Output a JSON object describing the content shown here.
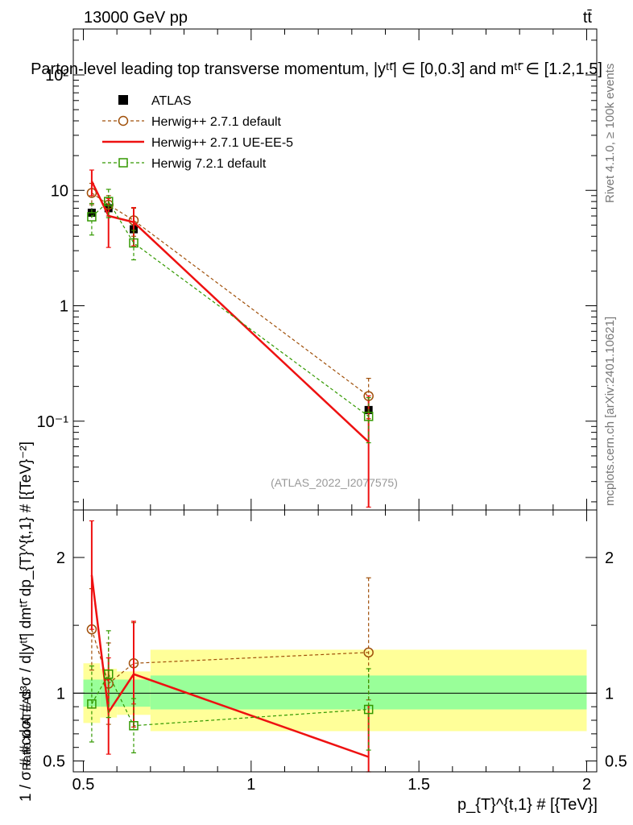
{
  "header": {
    "energy_label": "13000 GeV pp",
    "process_label": "tt̄",
    "title": "Parton-level leading top transverse momentum, |yᵗᵗ̄| ∈ [0,0.3] and mᵗᵗ̄ ∈ [1.2,1.5]",
    "side_rivet": "Rivet 4.1.0, ≥ 100k events",
    "side_mcplots": "mcplots.cern.ch [arXiv:2401.10621]",
    "watermark": "(ATLAS_2022_I2077575)"
  },
  "colors": {
    "atlas": "#000000",
    "herwig271_default": "#a0500a",
    "herwig271_ueee5": "#ee1111",
    "herwig721_default": "#339900",
    "band_inner": "#99ff99",
    "band_outer": "#ffff99"
  },
  "chart_data": [
    {
      "type": "scatter",
      "panel": "main",
      "ylabel": "1 / σ # #cdot # d³σ / d|yᵗᵗ̄| dmᵗᵗ̄ dp_{T}^{t,1} # [{TeV}⁻²]",
      "yscale": "log",
      "xlim": [
        0.47,
        2.03
      ],
      "ylim": [
        0.017,
        250
      ],
      "y_ticks": [
        {
          "value": 0.1,
          "label": "10⁻¹"
        },
        {
          "value": 1,
          "label": "1"
        },
        {
          "value": 10,
          "label": "10"
        },
        {
          "value": 100,
          "label": "10²"
        }
      ],
      "legend_position": "top-left",
      "series": [
        {
          "name": "ATLAS",
          "style": "data",
          "x": [
            0.525,
            0.575,
            0.65,
            1.35
          ],
          "y": [
            6.4,
            7.0,
            4.6,
            0.125
          ],
          "yerr_lo": [
            0.6,
            0.6,
            0.6,
            0.02
          ],
          "yerr_hi": [
            0.6,
            0.6,
            0.6,
            0.02
          ]
        },
        {
          "name": "Herwig++ 2.7.1 default",
          "style": "circle-dashed",
          "x": [
            0.525,
            0.575,
            0.65,
            1.35
          ],
          "y": [
            9.5,
            7.5,
            5.5,
            0.165
          ],
          "yerr_lo": [
            2.0,
            1.5,
            1.5,
            0.06
          ],
          "yerr_hi": [
            2.0,
            1.5,
            1.5,
            0.07
          ]
        },
        {
          "name": "Herwig++ 2.7.1 UE-EE-5",
          "style": "solid",
          "x": [
            0.525,
            0.575,
            0.65,
            1.35
          ],
          "y": [
            12.0,
            6.0,
            5.3,
            0.066
          ],
          "yerr_lo": [
            3.0,
            2.8,
            2.0,
            0.048
          ],
          "yerr_hi": [
            3.0,
            2.5,
            1.8,
            0.1
          ]
        },
        {
          "name": "Herwig 7.2.1 default",
          "style": "square-dashed",
          "x": [
            0.525,
            0.575,
            0.65,
            1.35
          ],
          "y": [
            5.9,
            8.0,
            3.5,
            0.11
          ],
          "yerr_lo": [
            1.8,
            2.2,
            1.0,
            0.045
          ],
          "yerr_hi": [
            1.8,
            2.2,
            1.0,
            0.05
          ]
        }
      ]
    },
    {
      "type": "scatter",
      "panel": "ratio",
      "ylabel": "Ratio to ATLAS",
      "xlabel": "p_{T}^{t,1} # [{TeV}]",
      "xlim": [
        0.47,
        2.03
      ],
      "ylim": [
        0.42,
        2.35
      ],
      "x_ticks": [
        {
          "value": 0.5,
          "label": "0.5"
        },
        {
          "value": 1.0,
          "label": "1"
        },
        {
          "value": 1.5,
          "label": "1.5"
        },
        {
          "value": 2.0,
          "label": "2"
        }
      ],
      "y_ticks": [
        {
          "value": 0.5,
          "label": "0.5"
        },
        {
          "value": 1,
          "label": "1"
        },
        {
          "value": 2,
          "label": "2"
        }
      ],
      "bands": [
        {
          "x0": 0.5,
          "x1": 0.55,
          "inner_lo": 0.9,
          "inner_hi": 1.1,
          "outer_lo": 0.78,
          "outer_hi": 1.22
        },
        {
          "x0": 0.55,
          "x1": 0.6,
          "inner_lo": 0.9,
          "inner_hi": 1.1,
          "outer_lo": 0.82,
          "outer_hi": 1.18
        },
        {
          "x0": 0.6,
          "x1": 0.7,
          "inner_lo": 0.9,
          "inner_hi": 1.1,
          "outer_lo": 0.84,
          "outer_hi": 1.16
        },
        {
          "x0": 0.7,
          "x1": 2.0,
          "inner_lo": 0.88,
          "inner_hi": 1.13,
          "outer_lo": 0.72,
          "outer_hi": 1.32
        }
      ],
      "series": [
        {
          "name": "Herwig++ 2.7.1 default",
          "style": "circle-dashed",
          "x": [
            0.525,
            0.575,
            0.65,
            1.35
          ],
          "y": [
            1.47,
            1.07,
            1.22,
            1.3
          ],
          "yerr_lo": [
            0.3,
            0.3,
            0.3,
            0.35
          ],
          "yerr_hi": [
            0.3,
            0.3,
            0.3,
            0.55
          ]
        },
        {
          "name": "Herwig++ 2.7.1 UE-EE-5",
          "style": "solid",
          "x": [
            0.525,
            0.575,
            0.65,
            1.35
          ],
          "y": [
            1.87,
            0.86,
            1.14,
            0.53
          ],
          "yerr_lo": [
            0.4,
            0.31,
            0.39,
            0.13
          ],
          "yerr_hi": [
            0.4,
            0.4,
            0.39,
            0.38
          ]
        },
        {
          "name": "Herwig 7.2.1 default",
          "style": "square-dashed",
          "x": [
            0.525,
            0.575,
            0.65,
            1.35
          ],
          "y": [
            0.92,
            1.14,
            0.76,
            0.88
          ],
          "yerr_lo": [
            0.28,
            0.32,
            0.2,
            0.3
          ],
          "yerr_hi": [
            0.28,
            0.32,
            0.2,
            0.3
          ]
        }
      ]
    }
  ]
}
